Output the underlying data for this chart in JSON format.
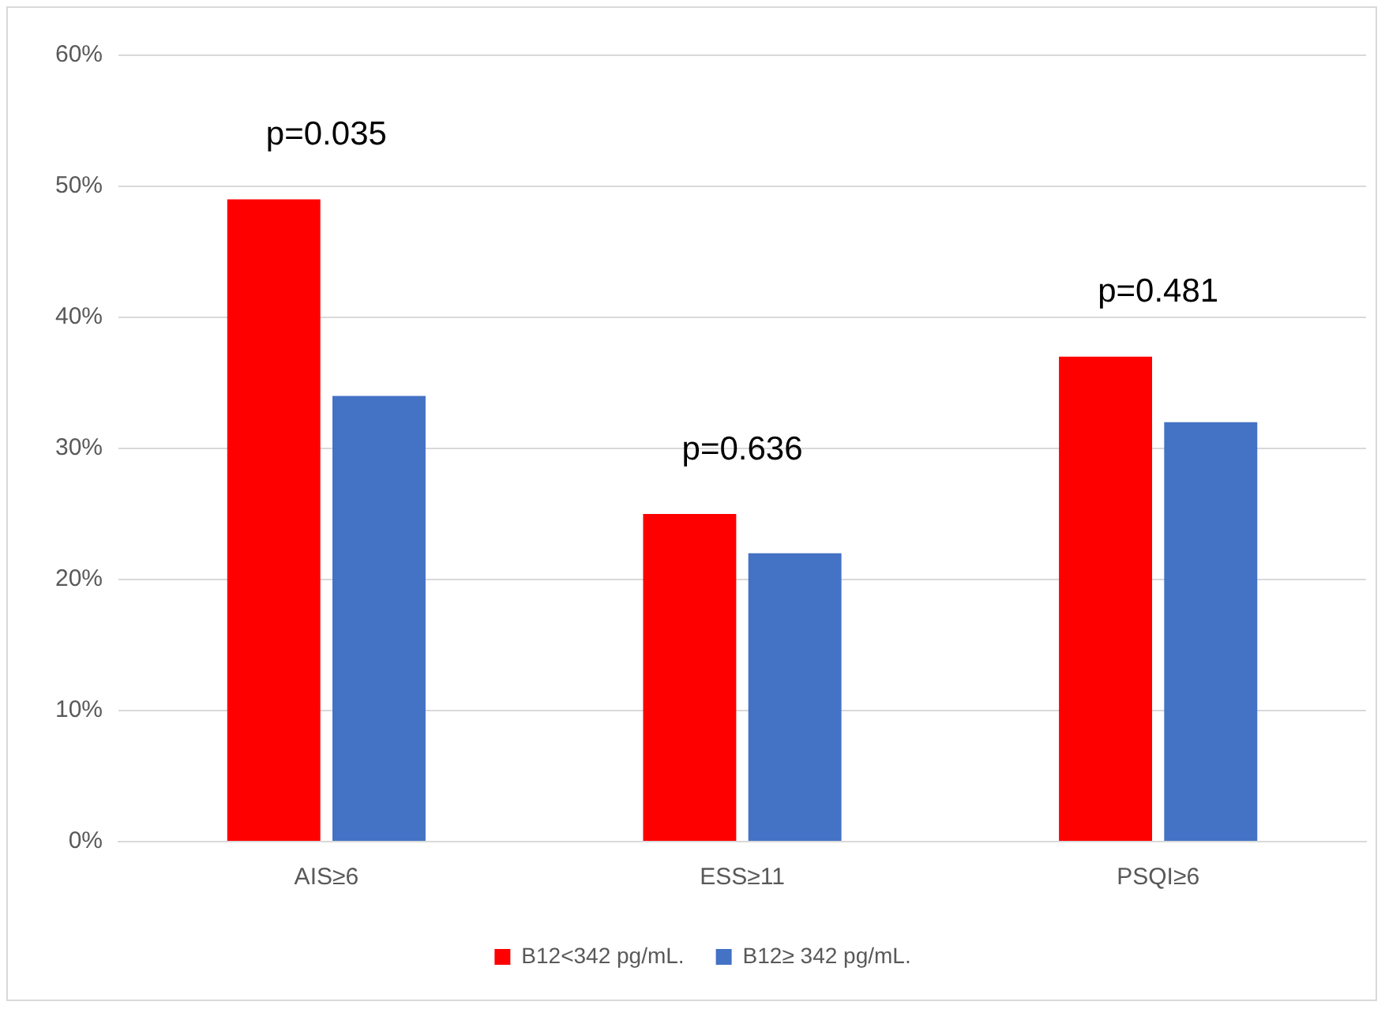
{
  "chart_data": {
    "type": "bar",
    "categories": [
      "AIS≥6",
      "ESS≥11",
      "PSQI≥6"
    ],
    "series": [
      {
        "name": "B12<342 pg/mL.",
        "color": "#ff0000",
        "values": [
          49,
          25,
          37
        ]
      },
      {
        "name": "B12≥ 342 pg/mL.",
        "color": "#4472c4",
        "values": [
          34,
          22,
          32
        ]
      }
    ],
    "ylim": [
      0,
      60
    ],
    "yticks": [
      {
        "value": 0,
        "label": "0%"
      },
      {
        "value": 10,
        "label": "10%"
      },
      {
        "value": 20,
        "label": "20%"
      },
      {
        "value": 30,
        "label": "30%"
      },
      {
        "value": 40,
        "label": "40%"
      },
      {
        "value": 50,
        "label": "50%"
      },
      {
        "value": 60,
        "label": "60%"
      }
    ],
    "grid": "y",
    "legend": "bottom",
    "annotations": [
      "p=0.035",
      "p=0.636",
      "p=0.481"
    ]
  }
}
